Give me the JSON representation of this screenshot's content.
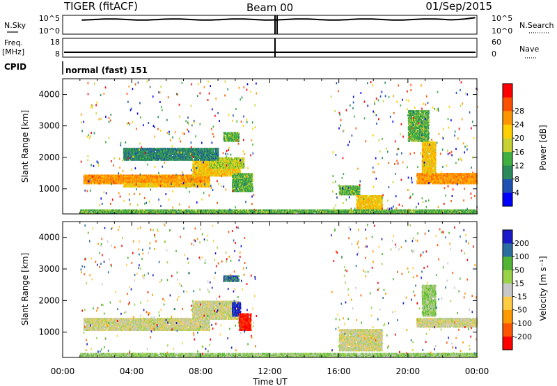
{
  "header": {
    "title": "TIGER (fitACF)",
    "beam": "Beam 00",
    "date": "01/Sep/2015",
    "cpid_label": "CPID",
    "cpid_value": "normal (fast) 151"
  },
  "top_panels": {
    "nsky_label": "N.Sky",
    "nsearch_label": "N.Search",
    "nsky_ticks": [
      "10^5",
      "10^0"
    ],
    "nsearch_ticks": [
      "10^5",
      "10^0"
    ],
    "freq_label_1": "Freq.",
    "freq_label_2": "[MHz]",
    "freq_ticks": [
      "18",
      "8"
    ],
    "nave_label": "Nave",
    "nave_ticks": [
      "60",
      "0"
    ]
  },
  "colors": {
    "power": [
      "#0000ff",
      "#1e50b4",
      "#2a8a5a",
      "#40b040",
      "#c8d232",
      "#ffd000",
      "#ff9600",
      "#ff5000",
      "#ff0000"
    ],
    "velocity": [
      "#ff0000",
      "#ff5500",
      "#ff9900",
      "#ffcc44",
      "#c8c8c8",
      "#9ad24a",
      "#50b434",
      "#2a6ea0",
      "#1a1ac8"
    ]
  },
  "chart_data": [
    {
      "type": "heatmap",
      "name": "power",
      "ylabel": "Slant Range [km]",
      "yticks": [
        1000,
        2000,
        3000,
        4000
      ],
      "ylim": [
        200,
        4500
      ],
      "xlim": [
        0,
        24
      ],
      "xticks": [
        "00:00",
        "04:00",
        "08:00",
        "12:00",
        "16:00",
        "20:00",
        "00:00"
      ],
      "colorbar": {
        "label": "Power [dB]",
        "ticks": [
          "4",
          "8",
          "12",
          "16",
          "20",
          "24",
          "28"
        ]
      },
      "regions": [
        {
          "t0": 1.2,
          "t1": 8.5,
          "r0": 1150,
          "r1": 1450,
          "level": 6
        },
        {
          "t0": 3.5,
          "t1": 8.5,
          "r0": 1050,
          "r1": 1200,
          "level": 5
        },
        {
          "t0": 7.5,
          "t1": 10.3,
          "r0": 1400,
          "r1": 1900,
          "level": 5
        },
        {
          "t0": 8.5,
          "t1": 10.5,
          "r0": 1650,
          "r1": 2000,
          "level": 4
        },
        {
          "t0": 9.3,
          "t1": 10.2,
          "r0": 2500,
          "r1": 2800,
          "level": 3
        },
        {
          "t0": 3.5,
          "t1": 9.0,
          "r0": 1900,
          "r1": 2300,
          "level": 2
        },
        {
          "t0": 9.8,
          "t1": 11.0,
          "r0": 900,
          "r1": 1500,
          "level": 3
        },
        {
          "t0": 16.0,
          "t1": 17.2,
          "r0": 800,
          "r1": 1100,
          "level": 3
        },
        {
          "t0": 17.0,
          "t1": 18.5,
          "r0": 350,
          "r1": 800,
          "level": 5
        },
        {
          "t0": 20.5,
          "t1": 24.0,
          "r0": 1150,
          "r1": 1500,
          "level": 6
        },
        {
          "t0": 20.8,
          "t1": 21.6,
          "r0": 1500,
          "r1": 2500,
          "level": 5
        },
        {
          "t0": 20.0,
          "t1": 21.2,
          "r0": 2500,
          "r1": 3500,
          "level": 3
        },
        {
          "t0": 1.0,
          "t1": 24.0,
          "r0": 200,
          "r1": 350,
          "level": 3
        }
      ]
    },
    {
      "type": "heatmap",
      "name": "velocity",
      "ylabel": "Slant Range [km]",
      "xlabel": "Time UT",
      "yticks": [
        1000,
        2000,
        3000,
        4000
      ],
      "ylim": [
        200,
        4500
      ],
      "xlim": [
        0,
        24
      ],
      "xticks": [
        "00:00",
        "04:00",
        "08:00",
        "12:00",
        "16:00",
        "20:00",
        "00:00"
      ],
      "colorbar": {
        "label": "Velocity [m s⁻¹]",
        "ticks": [
          "-200",
          "-100",
          "-50",
          "-15",
          "15",
          "50",
          "100",
          "200"
        ]
      },
      "regions": [
        {
          "t0": 1.2,
          "t1": 8.5,
          "r0": 1050,
          "r1": 1450,
          "level": 4
        },
        {
          "t0": 7.5,
          "t1": 10.2,
          "r0": 1400,
          "r1": 2000,
          "level": 4
        },
        {
          "t0": 9.8,
          "t1": 10.3,
          "r0": 1500,
          "r1": 1950,
          "level": 8
        },
        {
          "t0": 10.2,
          "t1": 10.9,
          "r0": 1050,
          "r1": 1600,
          "level": 0
        },
        {
          "t0": 9.3,
          "t1": 10.2,
          "r0": 2600,
          "r1": 2800,
          "level": 7
        },
        {
          "t0": 16.0,
          "t1": 18.5,
          "r0": 400,
          "r1": 1100,
          "level": 4
        },
        {
          "t0": 20.5,
          "t1": 24.0,
          "r0": 1150,
          "r1": 1450,
          "level": 4
        },
        {
          "t0": 20.8,
          "t1": 21.6,
          "r0": 1500,
          "r1": 2500,
          "level": 5
        },
        {
          "t0": 1.0,
          "t1": 24.0,
          "r0": 200,
          "r1": 350,
          "level": 5
        }
      ]
    }
  ]
}
